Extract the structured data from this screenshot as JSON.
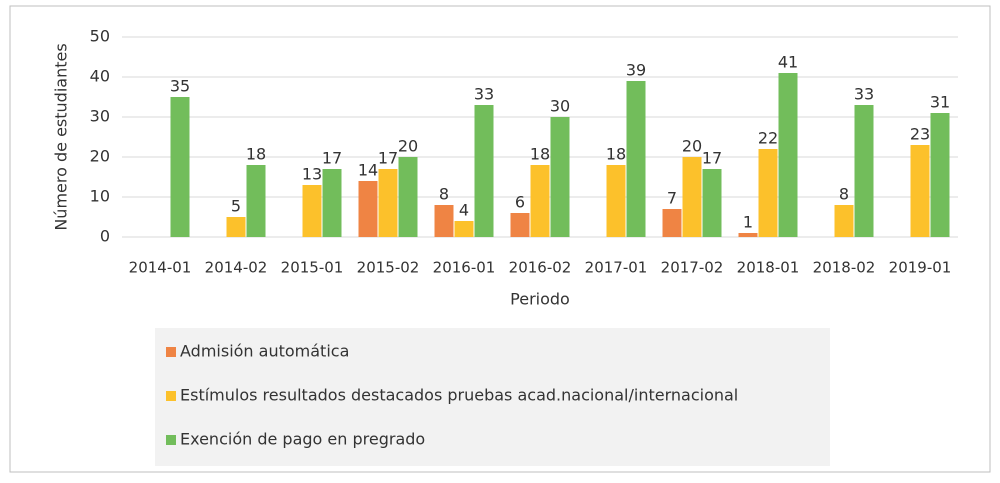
{
  "chart_data": {
    "type": "bar",
    "x_label": "Periodo",
    "y_label": "Número de estudiantes",
    "categories": [
      "2014-01",
      "2014-02",
      "2015-01",
      "2015-02",
      "2016-01",
      "2016-02",
      "2017-01",
      "2017-02",
      "2018-01",
      "2018-02",
      "2019-01"
    ],
    "series": [
      {
        "name": "Admisión automática",
        "color": "#ef8444",
        "values": [
          null,
          null,
          null,
          14,
          8,
          6,
          null,
          7,
          1,
          null,
          null
        ]
      },
      {
        "name": "Estímulos resultados destacados pruebas acad.nacional/internacional",
        "color": "#fcc12b",
        "values": [
          null,
          5,
          13,
          17,
          4,
          18,
          18,
          20,
          22,
          8,
          23
        ]
      },
      {
        "name": "Exención de pago en pregrado",
        "color": "#72bd5b",
        "values": [
          35,
          18,
          17,
          20,
          33,
          30,
          39,
          17,
          41,
          33,
          31
        ]
      }
    ],
    "ylim": [
      0,
      50
    ],
    "yticks": [
      0,
      10,
      20,
      30,
      40,
      50
    ],
    "grid": true,
    "legend": "bottom"
  }
}
